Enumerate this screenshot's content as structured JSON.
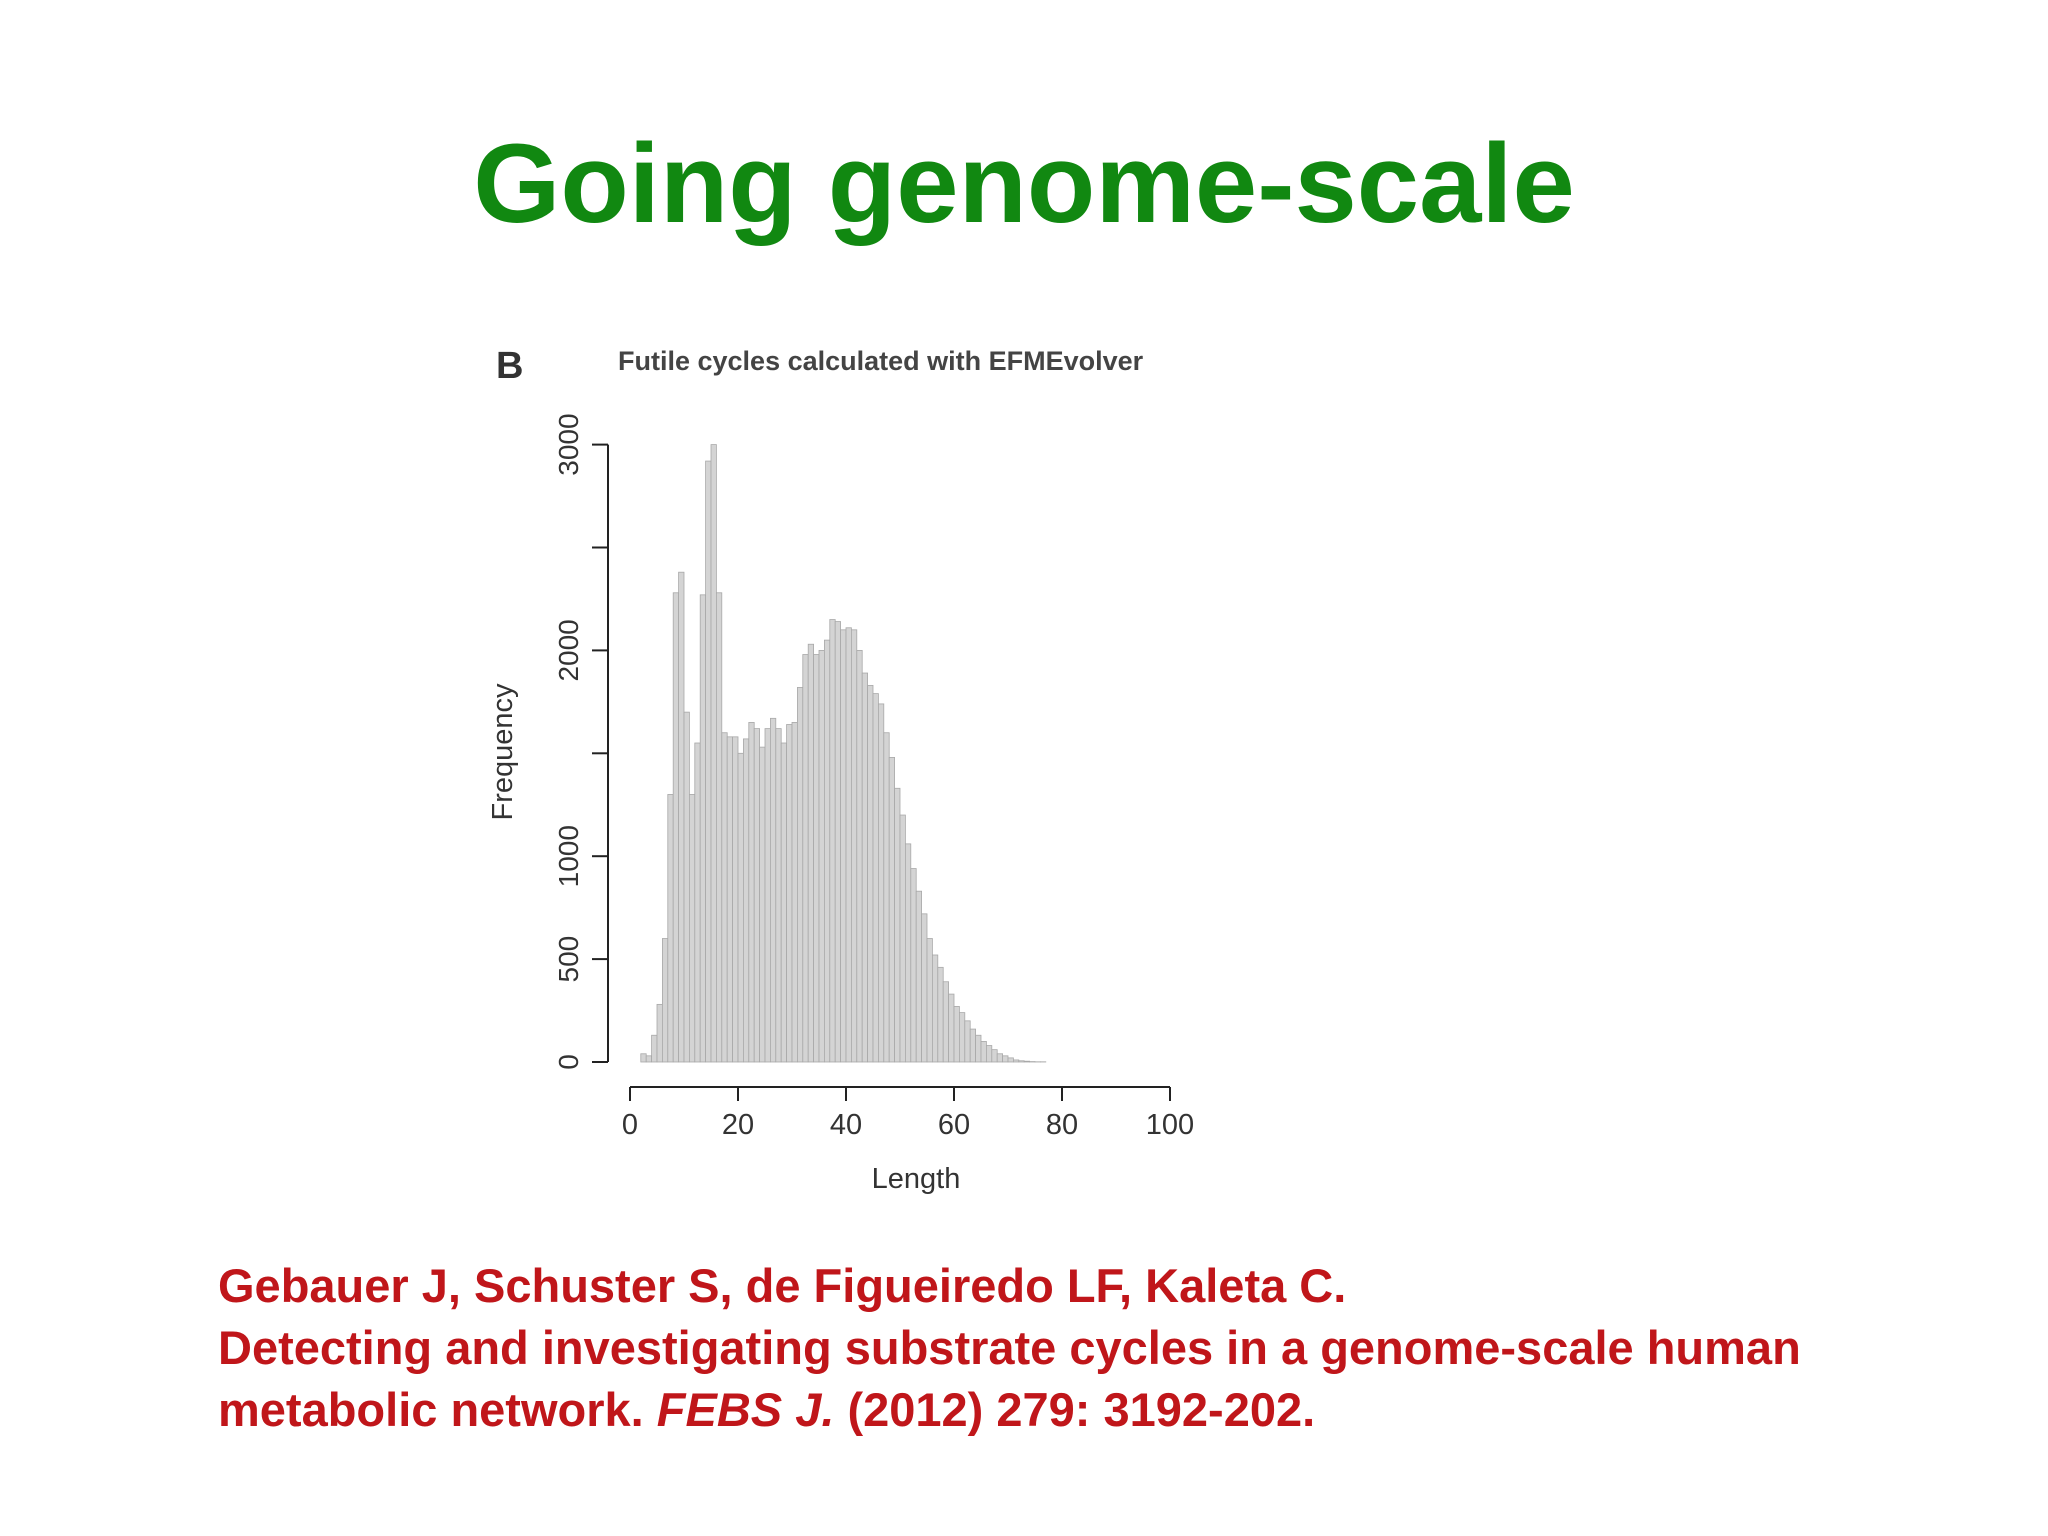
{
  "slide": {
    "title": "Going genome-scale"
  },
  "figure": {
    "panel_label": "B"
  },
  "citation": {
    "authors": "Gebauer J, Schuster S, de Figueiredo LF, Kaleta C.",
    "title_part1": "Detecting and investigating substrate cycles in a genome-scale human",
    "title_part2": "metabolic network.",
    "journal": "FEBS J.",
    "details": "(2012) 279: 3192-202."
  },
  "colors": {
    "title": "#118811",
    "citation": "#c0161a",
    "bar_fill": "#d4d4d4",
    "bar_stroke": "#a8a8a8",
    "axis": "#222222"
  },
  "chart_data": {
    "type": "bar",
    "title": "Futile cycles calculated with EFMEvolver",
    "xlabel": "Length",
    "ylabel": "Frequency",
    "xlim": [
      0,
      107
    ],
    "ylim": [
      0,
      3000
    ],
    "x_ticks": [
      0,
      20,
      40,
      60,
      80,
      100
    ],
    "y_ticks": [
      0,
      500,
      1000,
      2000,
      3000
    ],
    "y_minor_ticks": [
      1500,
      2500
    ],
    "grid": false,
    "bin_width": 1,
    "bin_starts": [
      0,
      1,
      2,
      3,
      4,
      5,
      6,
      7,
      8,
      9,
      10,
      11,
      12,
      13,
      14,
      15,
      16,
      17,
      18,
      19,
      20,
      21,
      22,
      23,
      24,
      25,
      26,
      27,
      28,
      29,
      30,
      31,
      32,
      33,
      34,
      35,
      36,
      37,
      38,
      39,
      40,
      41,
      42,
      43,
      44,
      45,
      46,
      47,
      48,
      49,
      50,
      51,
      52,
      53,
      54,
      55,
      56,
      57,
      58,
      59,
      60,
      61,
      62,
      63,
      64,
      65,
      66,
      67,
      68,
      69,
      70,
      71,
      72,
      73,
      74,
      75,
      76,
      77,
      78,
      79,
      80,
      81,
      82,
      83,
      84,
      85,
      86,
      87,
      88,
      89,
      90,
      91,
      92,
      93,
      94,
      95,
      96,
      97,
      98,
      99,
      100,
      101,
      102,
      103,
      104,
      105,
      106
    ],
    "values": [
      0,
      0,
      40,
      30,
      130,
      280,
      600,
      1300,
      2280,
      2380,
      1700,
      1300,
      1550,
      2270,
      2920,
      3000,
      2280,
      1600,
      1580,
      1580,
      1500,
      1570,
      1650,
      1620,
      1530,
      1620,
      1670,
      1620,
      1550,
      1640,
      1650,
      1820,
      1980,
      2030,
      1980,
      2000,
      2050,
      2150,
      2140,
      2100,
      2110,
      2100,
      2000,
      1890,
      1830,
      1790,
      1740,
      1600,
      1480,
      1330,
      1200,
      1060,
      940,
      830,
      720,
      600,
      520,
      460,
      390,
      330,
      270,
      240,
      200,
      160,
      130,
      100,
      80,
      60,
      40,
      30,
      20,
      10,
      6,
      4,
      2,
      1,
      1,
      0,
      0,
      0,
      0,
      0,
      0,
      0,
      0,
      0,
      0,
      0,
      0,
      0,
      0,
      0,
      0,
      0,
      0,
      0,
      0,
      0,
      0,
      0,
      0,
      0,
      0,
      0,
      0,
      0,
      0
    ]
  }
}
